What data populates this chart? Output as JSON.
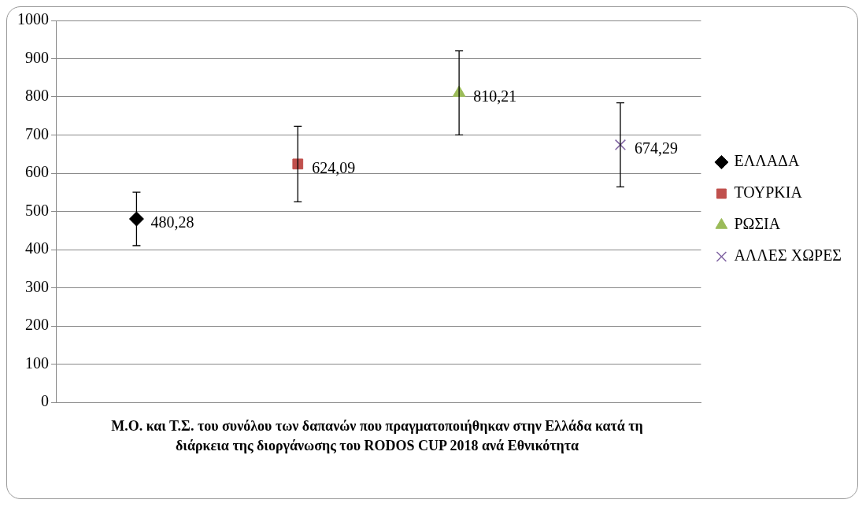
{
  "chart_data": {
    "type": "scatter",
    "title": "Μ.Ο. και Τ.Σ. του συνόλου των δαπανών που πραγματοποιήθηκαν στην Ελλάδα κατά τη διάρκεια της διοργάνωσης του RODOS CUP 2018  ανά Εθνικότητα",
    "categories": [
      null,
      null,
      null,
      null
    ],
    "series": [
      {
        "name": "ΕΛΛΑΔΑ",
        "color": "#000000",
        "marker": "diamond",
        "values": [
          480.28,
          null,
          null,
          null
        ],
        "errors": [
          70,
          null,
          null,
          null
        ],
        "value_labels": [
          "480,28",
          null,
          null,
          null
        ]
      },
      {
        "name": "ΤΟΥΡΚΙΑ",
        "color": "#c0504d",
        "marker": "square",
        "values": [
          null,
          624.09,
          null,
          null
        ],
        "errors": [
          null,
          99,
          null,
          null
        ],
        "value_labels": [
          null,
          "624,09",
          null,
          null
        ]
      },
      {
        "name": "ΡΩΣΙΑ",
        "color": "#9bbb59",
        "marker": "triangle",
        "values": [
          null,
          null,
          810.21,
          null
        ],
        "errors": [
          null,
          null,
          110,
          null
        ],
        "value_labels": [
          null,
          null,
          "810,21",
          null
        ]
      },
      {
        "name": "ΑΛΛΕΣ ΧΩΡΕΣ",
        "color": "#8064a2",
        "marker": "cross",
        "values": [
          null,
          null,
          null,
          674.29
        ],
        "errors": [
          null,
          null,
          null,
          110
        ],
        "value_labels": [
          null,
          null,
          null,
          "674,29"
        ]
      }
    ],
    "ylim": [
      0,
      1000
    ],
    "yticks": [
      0,
      100,
      200,
      300,
      400,
      500,
      600,
      700,
      800,
      900,
      1000
    ],
    "grid": "y",
    "legend": "right",
    "tick_labels": "y"
  }
}
